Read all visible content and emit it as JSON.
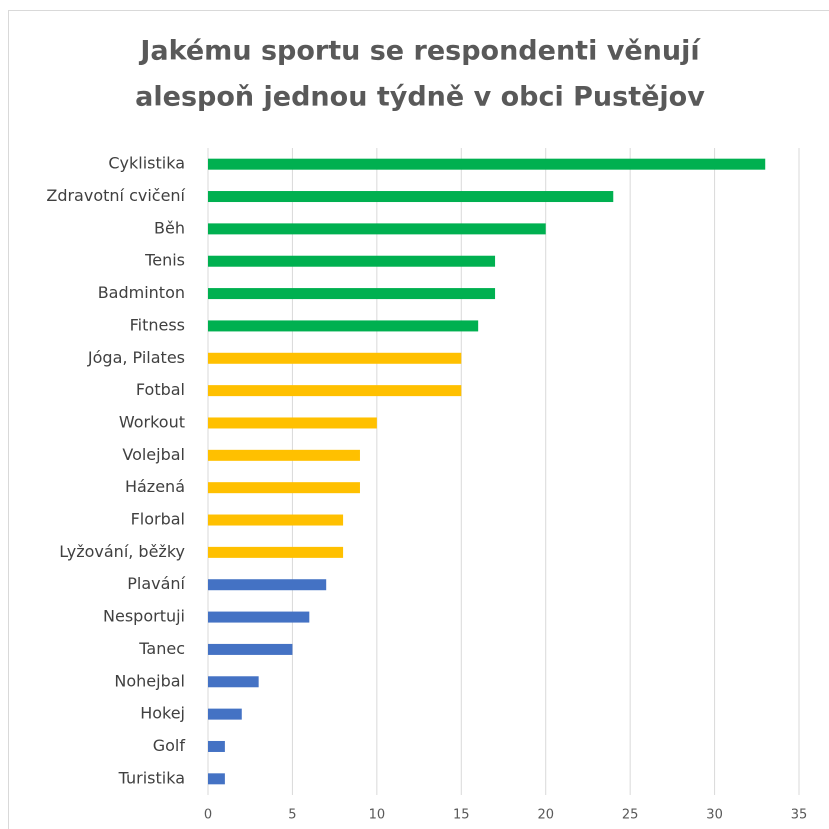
{
  "chart_data": {
    "type": "hbar",
    "title": [
      "Jakému sportu se respondenti věnují",
      "alespoň jednou týdně v obci Pustějov"
    ],
    "categories": [
      "Cyklistika",
      "Zdravotní cvičení",
      "Běh",
      "Tenis",
      "Badminton",
      "Fitness",
      "Jóga, Pilates",
      "Fotbal",
      "Workout",
      "Volejbal",
      "Házená",
      "Florbal",
      "Lyžování, běžky",
      "Plavání",
      "Nesportuji",
      "Tanec",
      "Nohejbal",
      "Hokej",
      "Golf",
      "Turistika"
    ],
    "values": [
      33,
      24,
      20,
      17,
      17,
      16,
      15,
      15,
      10,
      9,
      9,
      8,
      8,
      7,
      6,
      5,
      3,
      2,
      1,
      1
    ],
    "colors": [
      "#00b050",
      "#00b050",
      "#00b050",
      "#00b050",
      "#00b050",
      "#00b050",
      "#ffc000",
      "#ffc000",
      "#ffc000",
      "#ffc000",
      "#ffc000",
      "#ffc000",
      "#ffc000",
      "#4472c4",
      "#4472c4",
      "#4472c4",
      "#4472c4",
      "#4472c4",
      "#4472c4",
      "#4472c4"
    ],
    "xlim": [
      0,
      35
    ],
    "xticks": [
      0,
      5,
      10,
      15,
      20,
      25,
      30,
      35
    ],
    "grid": true
  }
}
